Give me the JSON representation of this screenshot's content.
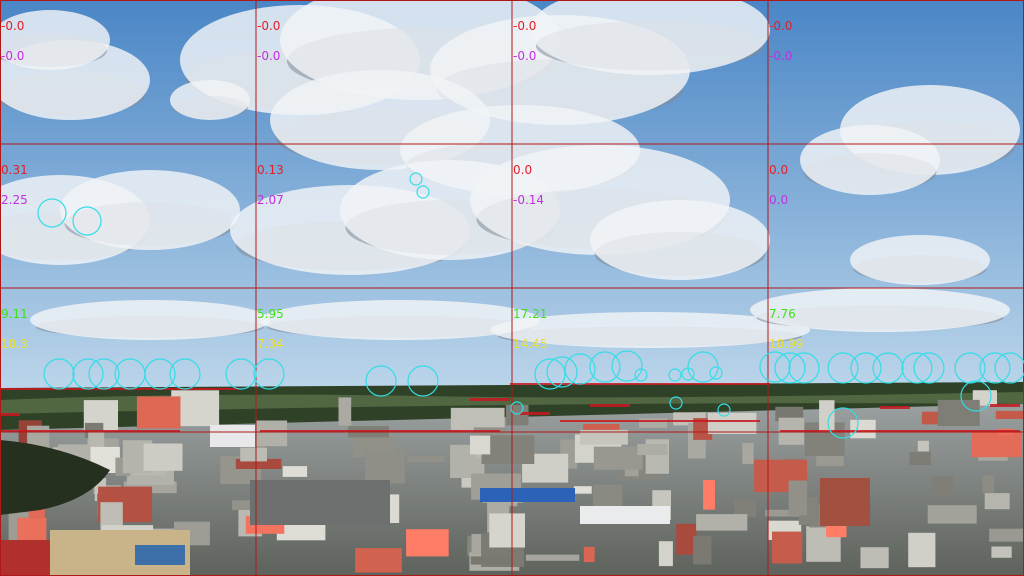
{
  "overlay": {
    "grid_color": "#b01818",
    "marker_color": "#34dce6",
    "row_colors": [
      [
        "#e0202a",
        "#c030e0"
      ],
      [
        "#e0202a",
        "#c030e0"
      ],
      [
        "#40e020",
        "#f0e020"
      ]
    ],
    "cells": [
      [
        {
          "a": "-0.0",
          "b": "-0.0"
        },
        {
          "a": "-0.0",
          "b": "-0.0"
        },
        {
          "a": "-0.0",
          "b": "-0.0"
        },
        {
          "a": "-0.0",
          "b": "-0.0"
        }
      ],
      [
        {
          "a": "0.31",
          "b": "2.25"
        },
        {
          "a": "0.13",
          "b": "2.07"
        },
        {
          "a": "0.0",
          "b": "-0.14"
        },
        {
          "a": "0.0",
          "b": "0.0"
        }
      ],
      [
        {
          "a": "9.11",
          "b": "10.3"
        },
        {
          "a": "5.95",
          "b": "7.34"
        },
        {
          "a": "17.21",
          "b": "14.45"
        },
        {
          "a": "7.76",
          "b": "10.99"
        }
      ]
    ]
  },
  "scene": {
    "sky_top": "#4a86c6",
    "sky_bottom": "#bcd6ea",
    "cloud_color": "#f2f4f6",
    "cloud_shadow": "#7f8a99",
    "forest_color": "#2f4228",
    "city_color": "#8a8c86"
  }
}
